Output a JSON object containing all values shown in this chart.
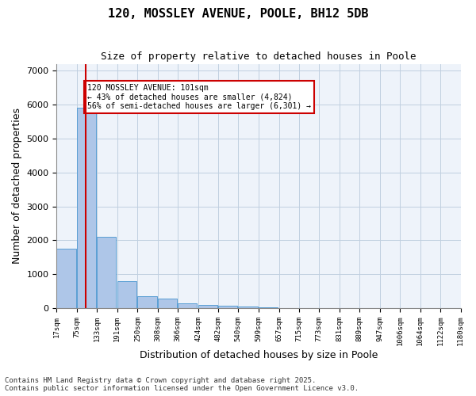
{
  "title": "120, MOSSLEY AVENUE, POOLE, BH12 5DB",
  "subtitle": "Size of property relative to detached houses in Poole",
  "xlabel": "Distribution of detached houses by size in Poole",
  "ylabel": "Number of detached properties",
  "bins": [
    17,
    75,
    133,
    191,
    250,
    308,
    366,
    424,
    482,
    540,
    599,
    657,
    715,
    773,
    831,
    889,
    947,
    1006,
    1064,
    1122,
    1180
  ],
  "counts": [
    1750,
    5900,
    2100,
    800,
    350,
    280,
    150,
    100,
    70,
    40,
    20,
    10,
    5,
    3,
    2,
    1,
    1,
    1,
    1,
    1
  ],
  "property_size": 101,
  "bar_color": "#aec6e8",
  "bar_edge_color": "#5a9fd4",
  "line_color": "#cc0000",
  "annotation_text": "120 MOSSLEY AVENUE: 101sqm\n← 43% of detached houses are smaller (4,824)\n56% of semi-detached houses are larger (6,301) →",
  "annotation_box_color": "#ffffff",
  "annotation_box_edge": "#cc0000",
  "background_color": "#eef3fa",
  "footer_text": "Contains HM Land Registry data © Crown copyright and database right 2025.\nContains public sector information licensed under the Open Government Licence v3.0.",
  "ylim": [
    0,
    7200
  ],
  "yticks": [
    0,
    1000,
    2000,
    3000,
    4000,
    5000,
    6000,
    7000
  ],
  "tick_labels": [
    "17sqm",
    "75sqm",
    "133sqm",
    "191sqm",
    "250sqm",
    "308sqm",
    "366sqm",
    "424sqm",
    "482sqm",
    "540sqm",
    "599sqm",
    "657sqm",
    "715sqm",
    "773sqm",
    "831sqm",
    "889sqm",
    "947sqm",
    "1006sqm",
    "1064sqm",
    "1122sqm",
    "1180sqm"
  ]
}
